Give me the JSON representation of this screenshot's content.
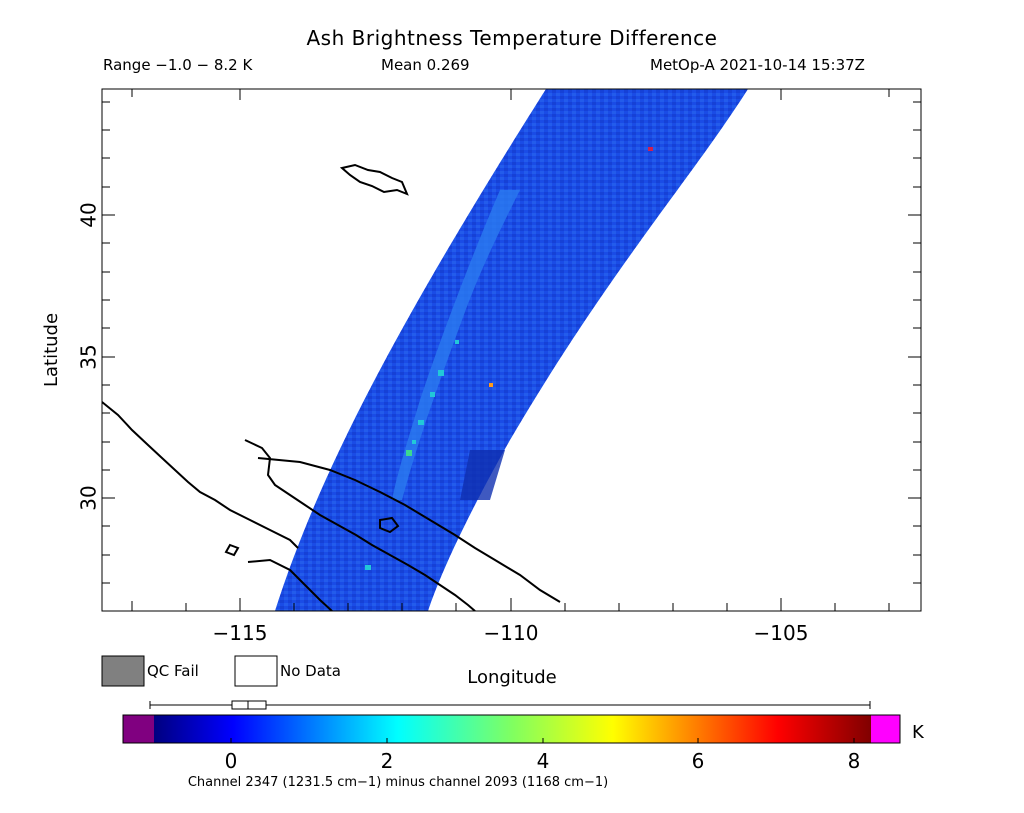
{
  "title": "Ash Brightness Temperature Difference",
  "range_label": "Range −1.0 − 8.2 K",
  "mean_label": "Mean 0.269",
  "satellite_label": "MetOp-A 2021-10-14 15:37Z",
  "y_axis_label": "Latitude",
  "x_axis_label": "Longitude",
  "lat_ticks": [
    "30",
    "35",
    "40"
  ],
  "lon_ticks": [
    "−115",
    "−110",
    "−105"
  ],
  "legend": {
    "qc_fail_label": "QC Fail",
    "qc_fail_color": "#808080",
    "no_data_label": "No Data",
    "no_data_color": "#ffffff"
  },
  "colorbar": {
    "unit": "K",
    "ticks": [
      "0",
      "2",
      "4",
      "6",
      "8"
    ],
    "below_range_color": "#800080",
    "above_range_color": "#ff00ff",
    "caption": "Channel 2347 (1231.5 cm−1) minus channel 2093 (1168 cm−1)"
  },
  "swath_colors": {
    "base": "#1a4ce6",
    "dark": "#0f2fb0",
    "light": "#2a7af0",
    "cyan": "#22c8d8",
    "green": "#3cd890",
    "hot_orange": "#ff9a1a",
    "hot_red": "#d02050"
  }
}
